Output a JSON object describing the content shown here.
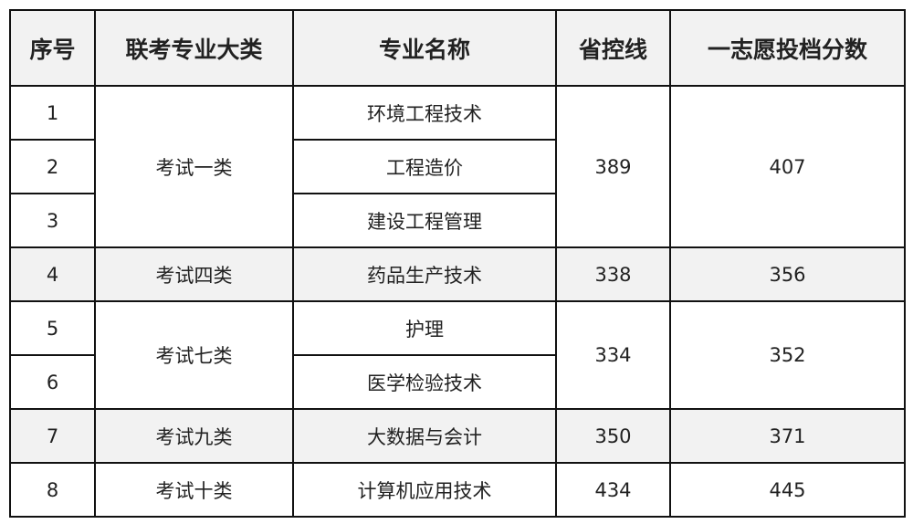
{
  "table": {
    "header": [
      "序号",
      "联考专业大类",
      "专业名称",
      "省控线",
      "一志愿投档分数"
    ],
    "groups": [
      {
        "category": "考试一类",
        "control_line": 389,
        "score": 407,
        "rows": [
          {
            "index": 1,
            "major": "环境工程技术"
          },
          {
            "index": 2,
            "major": "工程造价"
          },
          {
            "index": 3,
            "major": "建设工程管理"
          }
        ]
      },
      {
        "category": "考试四类",
        "control_line": 338,
        "score": 356,
        "rows": [
          {
            "index": 4,
            "major": "药品生产技术"
          }
        ]
      },
      {
        "category": "考试七类",
        "control_line": 334,
        "score": 352,
        "rows": [
          {
            "index": 5,
            "major": "护理"
          },
          {
            "index": 6,
            "major": "医学检验技术"
          }
        ]
      },
      {
        "category": "考试九类",
        "control_line": 350,
        "score": 371,
        "rows": [
          {
            "index": 7,
            "major": "大数据与会计"
          }
        ]
      },
      {
        "category": "考试十类",
        "control_line": 434,
        "score": 445,
        "rows": [
          {
            "index": 8,
            "major": "计算机应用技术"
          }
        ]
      }
    ]
  }
}
